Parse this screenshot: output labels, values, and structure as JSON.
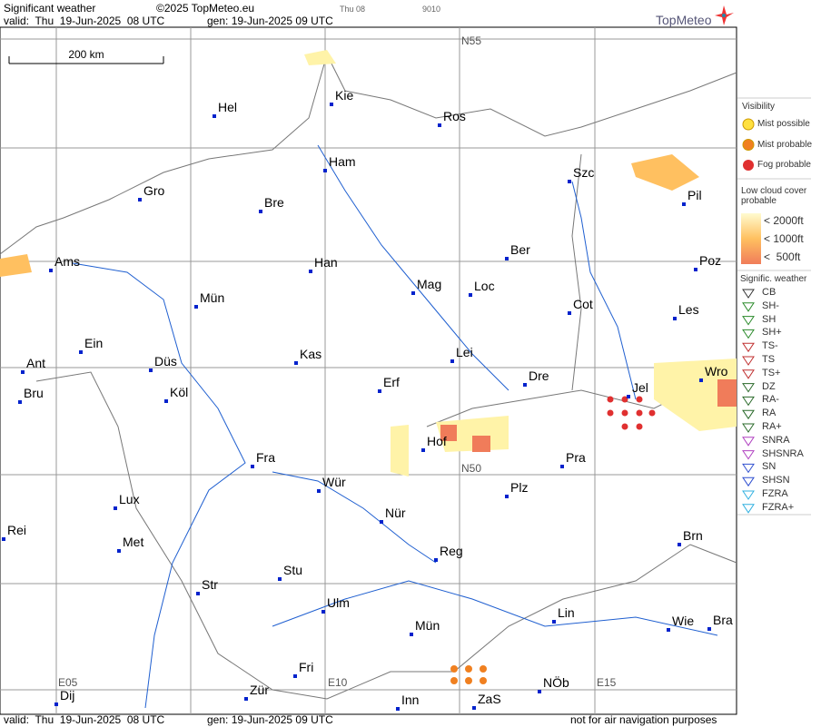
{
  "header": {
    "title": "Significant weather",
    "copyright": "©2025 TopMeteo.eu",
    "run": "Thu 08",
    "code": "9010",
    "brand": "TopMeteo",
    "valid": "valid:  Thu  19-Jun-2025  08 UTC",
    "generated": "gen: 19-Jun-2025 09 UTC"
  },
  "map": {
    "scale": "200 km",
    "grid_labels": [
      "N55",
      "N50",
      "E05",
      "E10",
      "E15"
    ],
    "cities": [
      "Kie",
      "Hel",
      "Ros",
      "Ham",
      "Szc",
      "Gro",
      "Bre",
      "Pil",
      "Ams",
      "Ber",
      "Han",
      "Poz",
      "Mag",
      "Loc",
      "Mün",
      "Cot",
      "Les",
      "Ein",
      "Kas",
      "Lei",
      "Ant",
      "Düs",
      "Wro",
      "Dre",
      "Jel",
      "Erf",
      "Köl",
      "Bru",
      "Hof",
      "Fra",
      "Pra",
      "Wür",
      "Plz",
      "Lux",
      "Nür",
      "Rei",
      "Brn",
      "Met",
      "Reg",
      "Stu",
      "Str",
      "Ulm",
      "Lin",
      "Wie",
      "Bra",
      "Mün",
      "Fri",
      "NÖb",
      "Dij",
      "Zür",
      "Inn",
      "ZaS"
    ]
  },
  "legend": {
    "visibility": {
      "title": "Visibility",
      "items": [
        "Mist possible",
        "Mist probable",
        "Fog probable"
      ]
    },
    "low_cloud": {
      "title": "Low cloud cover probable",
      "items": [
        "< 2000ft",
        "< 1000ft",
        "<  500ft"
      ]
    },
    "weather": {
      "title": "Signific. weather",
      "items": [
        "CB",
        "SH-",
        "SH",
        "SH+",
        "TS-",
        "TS",
        "TS+",
        "DZ",
        "RA-",
        "RA",
        "RA+",
        "SNRA",
        "SHSNRA",
        "SN",
        "SHSN",
        "FZRA",
        "FZRA+"
      ]
    }
  },
  "footer": {
    "valid": "valid:  Thu  19-Jun-2025  08 UTC",
    "generated": "gen: 19-Jun-2025 09 UTC",
    "note": "not for air navigation purposes"
  }
}
